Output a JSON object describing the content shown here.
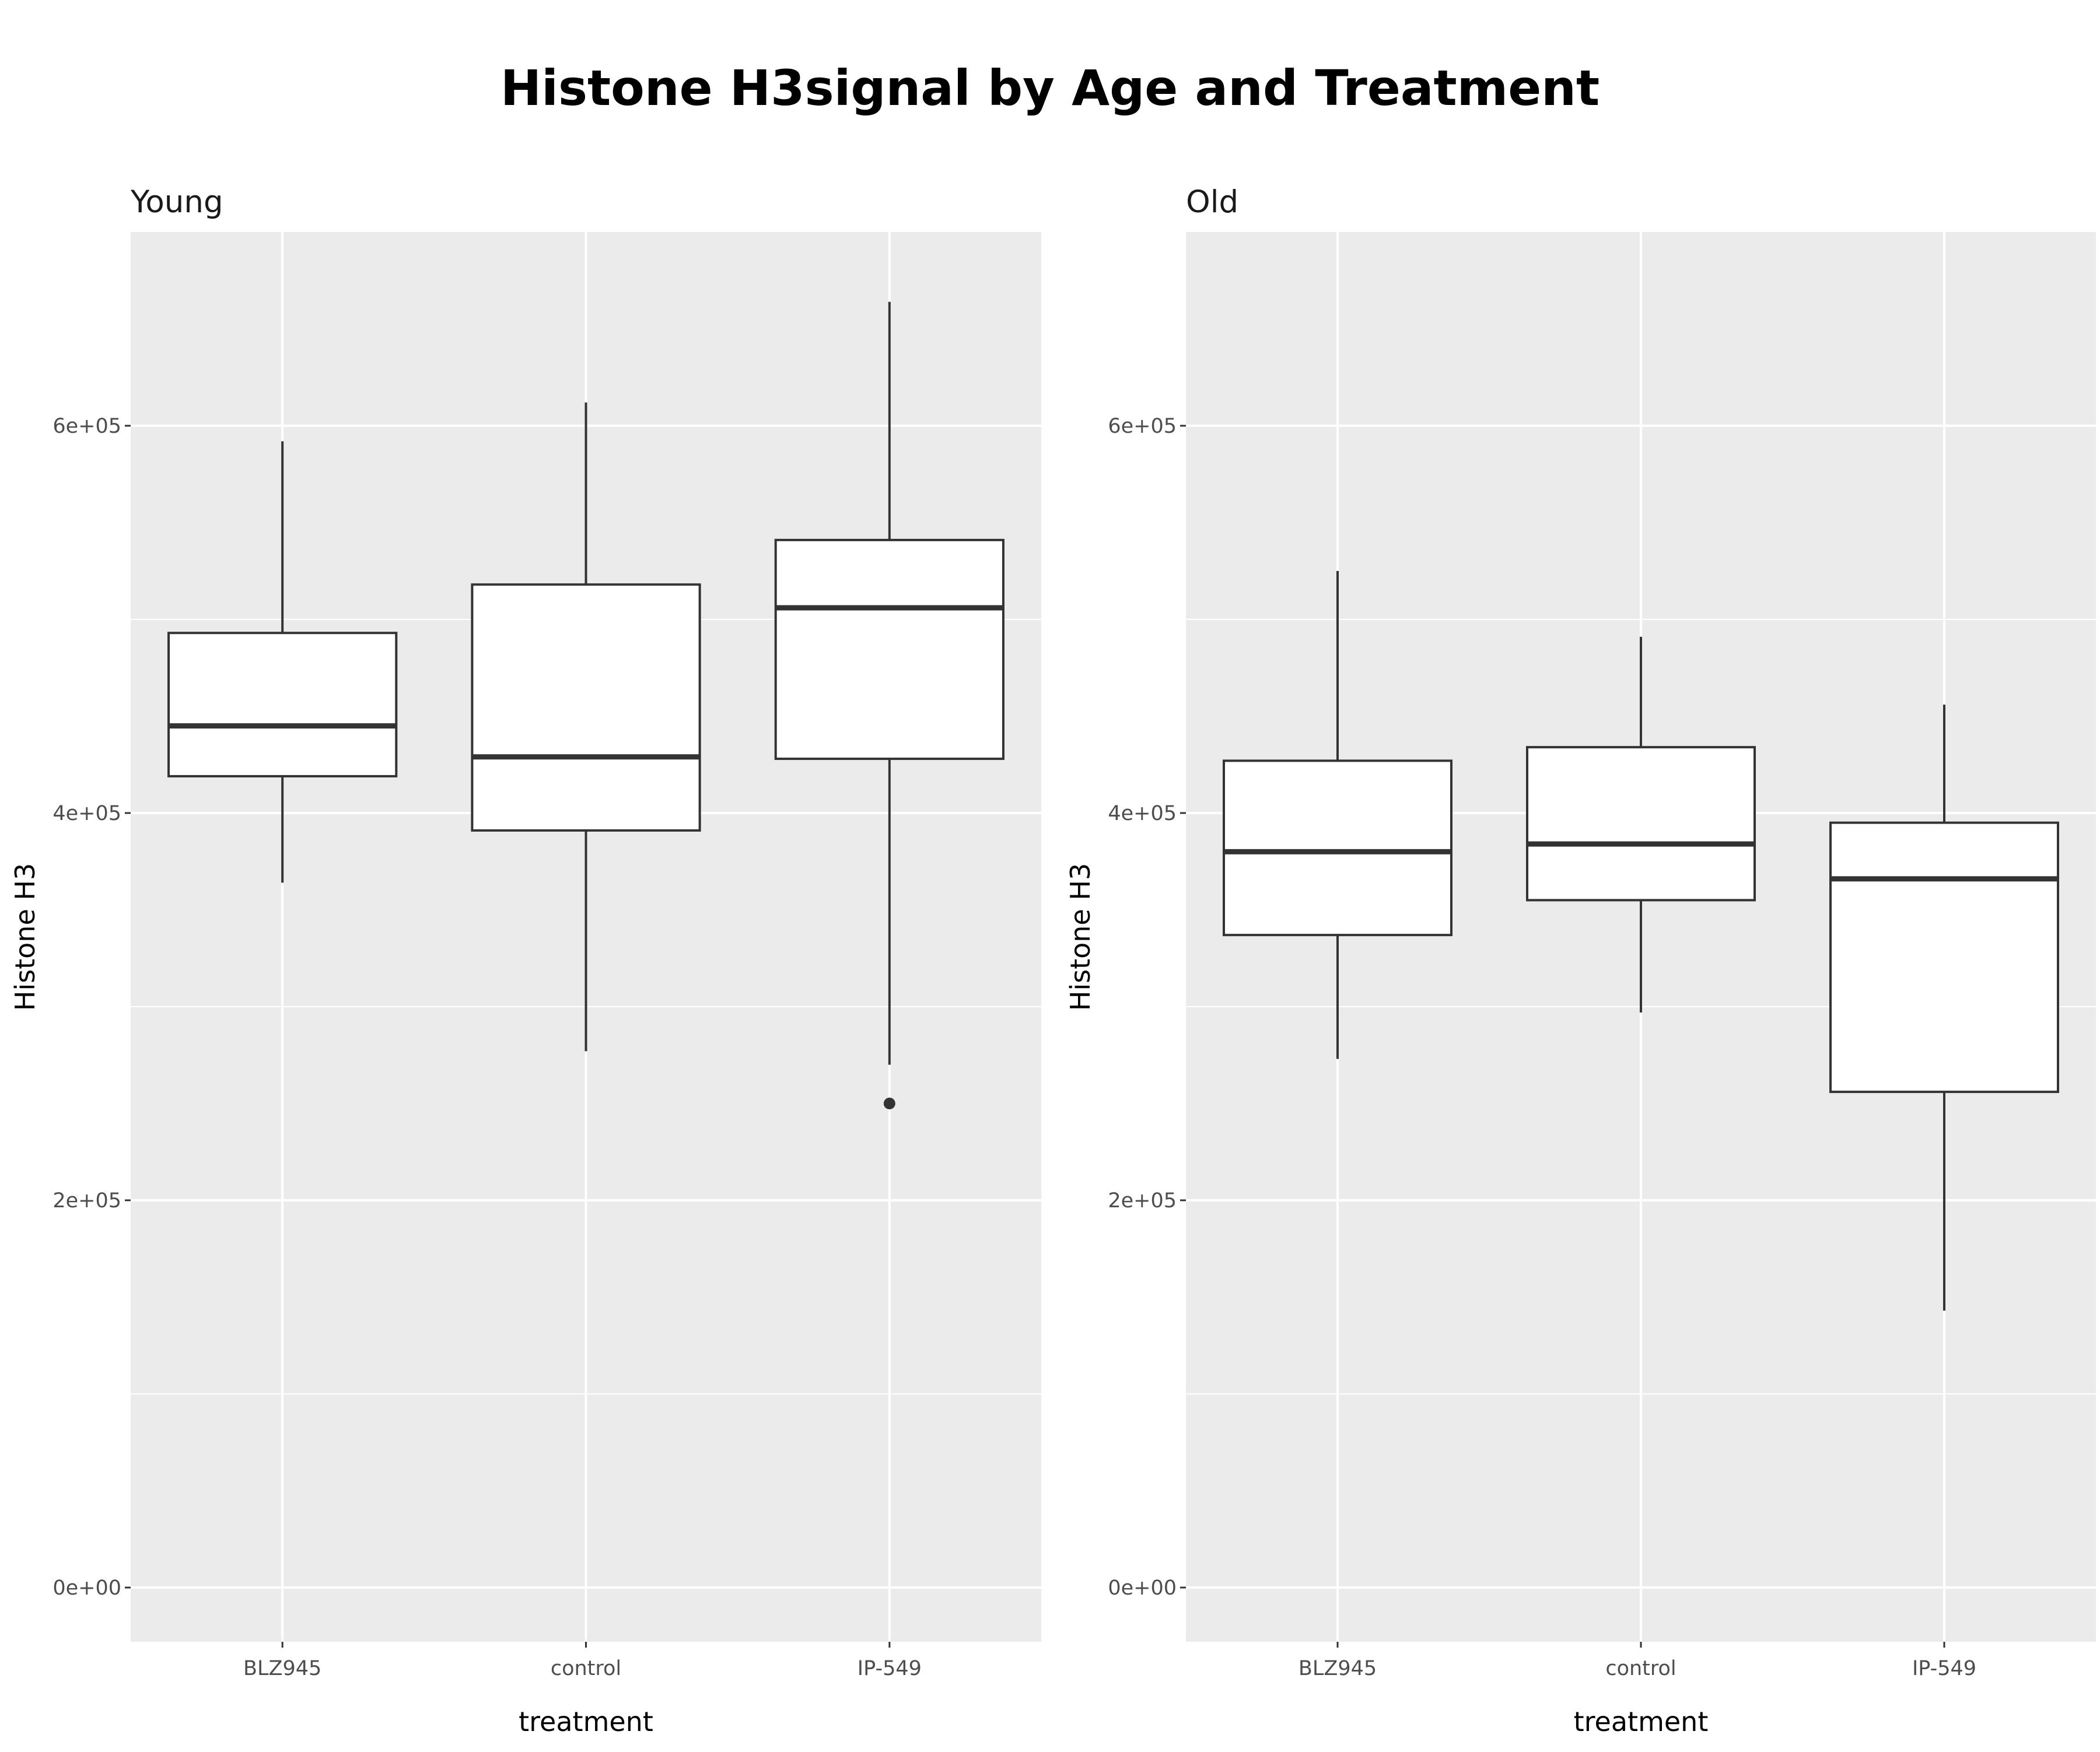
{
  "chart_data": {
    "type": "boxplot",
    "title": "Histone H3signal by Age and Treatment",
    "xlabel": "treatment",
    "ylabel": "Histone H3",
    "ylim": [
      -28000,
      700000
    ],
    "yticks": [
      0,
      200000,
      400000,
      600000
    ],
    "ytick_labels": [
      "0e+00",
      "2e+05",
      "4e+05",
      "6e+05"
    ],
    "y_minor_gridlines": [
      100000,
      300000,
      500000
    ],
    "grid": true,
    "categories": [
      "BLZ945",
      "control",
      "IP-549"
    ],
    "panels": [
      {
        "name": "Young",
        "boxes": [
          {
            "category": "BLZ945",
            "whisker_low": 364000,
            "q1": 419000,
            "median": 445000,
            "q3": 493000,
            "whisker_high": 592000,
            "outliers": []
          },
          {
            "category": "control",
            "whisker_low": 277000,
            "q1": 391000,
            "median": 429000,
            "q3": 518000,
            "whisker_high": 612000,
            "outliers": []
          },
          {
            "category": "IP-549",
            "whisker_low": 270000,
            "q1": 428000,
            "median": 506000,
            "q3": 541000,
            "whisker_high": 664000,
            "outliers": [
              250000
            ]
          }
        ]
      },
      {
        "name": "Old",
        "boxes": [
          {
            "category": "BLZ945",
            "whisker_low": 273000,
            "q1": 337000,
            "median": 380000,
            "q3": 427000,
            "whisker_high": 525000,
            "outliers": []
          },
          {
            "category": "control",
            "whisker_low": 297000,
            "q1": 355000,
            "median": 384000,
            "q3": 434000,
            "whisker_high": 491000,
            "outliers": []
          },
          {
            "category": "IP-549",
            "whisker_low": 143000,
            "q1": 256000,
            "median": 366000,
            "q3": 395000,
            "whisker_high": 456000,
            "outliers": []
          }
        ]
      }
    ]
  },
  "colors": {
    "panel_background": "#EBEBEB",
    "gridline": "#FFFFFF",
    "box_fill": "#FFFFFF",
    "box_line": "#333333"
  }
}
